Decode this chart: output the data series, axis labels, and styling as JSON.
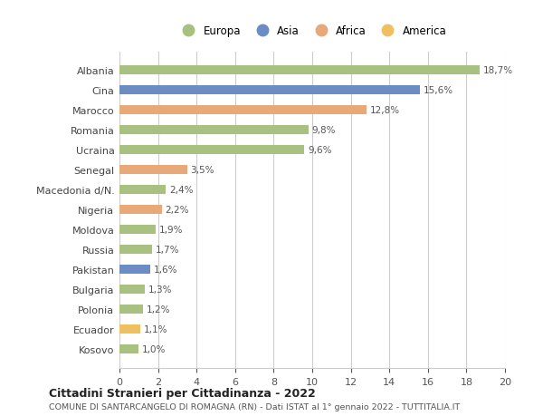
{
  "categories": [
    "Kosovo",
    "Ecuador",
    "Polonia",
    "Bulgaria",
    "Pakistan",
    "Russia",
    "Moldova",
    "Nigeria",
    "Macedonia d/N.",
    "Senegal",
    "Ucraina",
    "Romania",
    "Marocco",
    "Cina",
    "Albania"
  ],
  "values": [
    1.0,
    1.1,
    1.2,
    1.3,
    1.6,
    1.7,
    1.9,
    2.2,
    2.4,
    3.5,
    9.6,
    9.8,
    12.8,
    15.6,
    18.7
  ],
  "labels": [
    "1,0%",
    "1,1%",
    "1,2%",
    "1,3%",
    "1,6%",
    "1,7%",
    "1,9%",
    "2,2%",
    "2,4%",
    "3,5%",
    "9,6%",
    "9,8%",
    "12,8%",
    "15,6%",
    "18,7%"
  ],
  "colors": [
    "#a8c080",
    "#f0c060",
    "#a8c080",
    "#a8c080",
    "#6b8dc4",
    "#a8c080",
    "#a8c080",
    "#e8a878",
    "#a8c080",
    "#e8a878",
    "#a8c080",
    "#a8c080",
    "#e8a878",
    "#6b8dc4",
    "#a8c080"
  ],
  "legend": [
    {
      "label": "Europa",
      "color": "#a8c080"
    },
    {
      "label": "Asia",
      "color": "#6b8dc4"
    },
    {
      "label": "Africa",
      "color": "#e8a878"
    },
    {
      "label": "America",
      "color": "#f0c060"
    }
  ],
  "title": "Cittadini Stranieri per Cittadinanza - 2022",
  "subtitle": "COMUNE DI SANTARCANGELO DI ROMAGNA (RN) - Dati ISTAT al 1° gennaio 2022 - TUTTITALIA.IT",
  "xlim": [
    0,
    20
  ],
  "xticks": [
    0,
    2,
    4,
    6,
    8,
    10,
    12,
    14,
    16,
    18,
    20
  ],
  "background_color": "#ffffff",
  "grid_color": "#cccccc",
  "bar_height": 0.45,
  "fig_width": 6.0,
  "fig_height": 4.6,
  "dpi": 100
}
